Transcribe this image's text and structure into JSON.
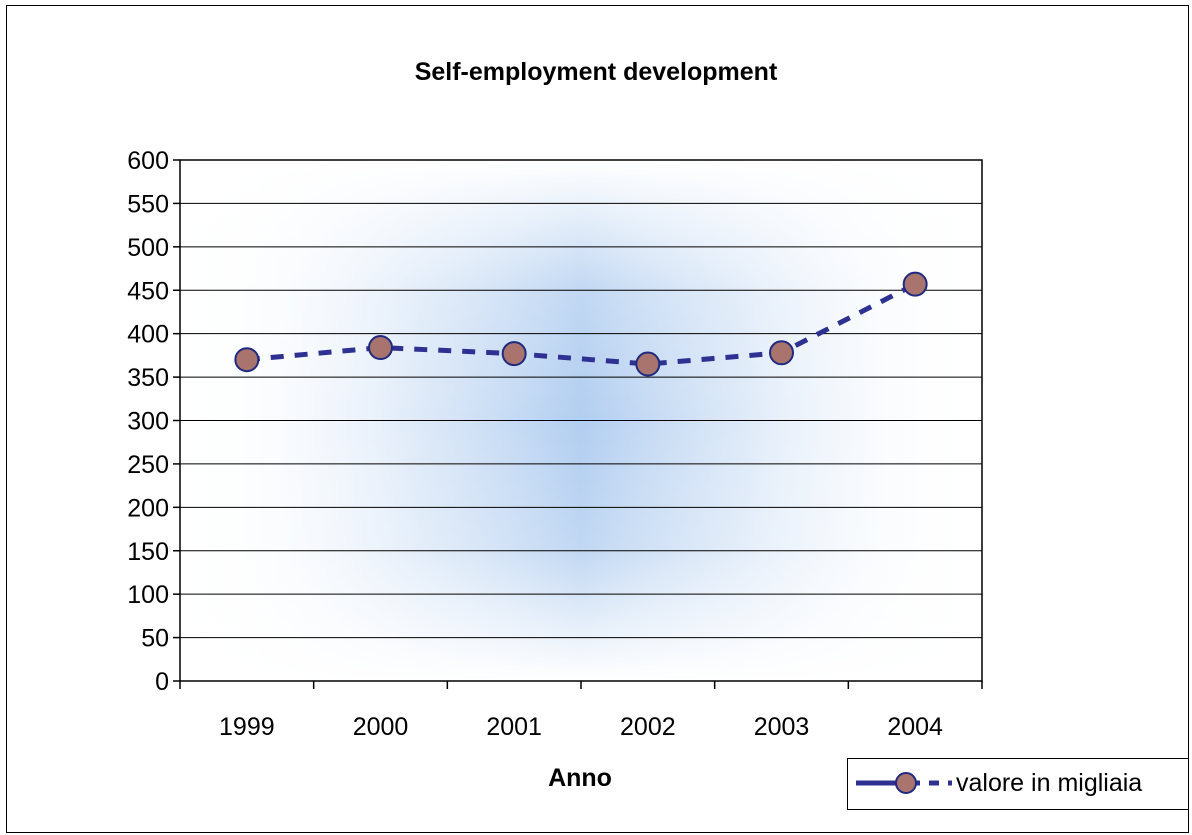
{
  "chart_data": {
    "type": "line",
    "title": "Self-employment development",
    "xlabel": "Anno",
    "ylabel": "",
    "categories": [
      "1999",
      "2000",
      "2001",
      "2002",
      "2003",
      "2004"
    ],
    "series": [
      {
        "name": "valore in migliaia",
        "values": [
          370,
          384,
          377,
          365,
          378,
          457
        ]
      }
    ],
    "ylim": [
      0,
      600
    ],
    "yticks": [
      0,
      50,
      100,
      150,
      200,
      250,
      300,
      350,
      400,
      450,
      500,
      550,
      600
    ],
    "grid": true,
    "legend": "bottom-right",
    "colors": {
      "line": "#2e3192",
      "marker_fill": "#a9746e",
      "marker_edge": "#1f2a80",
      "plot_glow": "#a8c8ee"
    }
  }
}
